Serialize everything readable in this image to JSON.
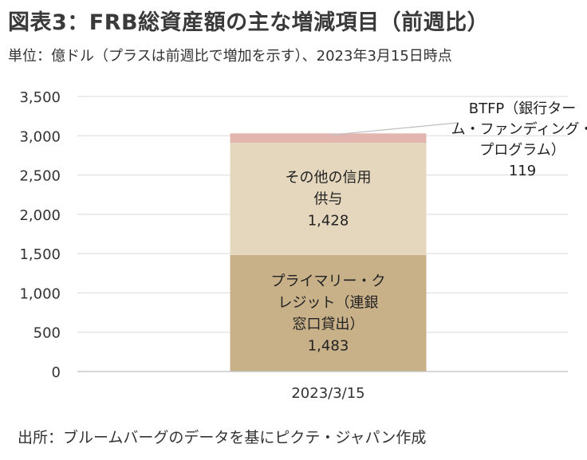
{
  "title": "図表3：FRB総資産額の主な増減項目（前週比）",
  "subtitle": "単位：億ドル（プラスは前週比で増加を示す）、2023年3月15日時点",
  "source": "出所：ブルームバーグのデータを基にピクテ・ジャパン作成",
  "colors": {
    "primary_credit": "#c8b089",
    "other_credit": "#e5d7bd",
    "btfp": "#e2b5ae",
    "grid": "#d9d9d9",
    "axis": "#bfbfbf"
  },
  "chart_data": {
    "type": "bar",
    "stacked": true,
    "categories": [
      "2023/3/15"
    ],
    "ylim": [
      0,
      3500
    ],
    "yticks": [
      "0",
      "500",
      "1,000",
      "1,500",
      "2,000",
      "2,500",
      "3,000",
      "3,500"
    ],
    "grid": true,
    "series": [
      {
        "name": "プライマリー・クレジット（連銀窓口貸出）",
        "values": [
          1483
        ],
        "label_lines": [
          "プライマリー・ク",
          "レジット（連銀",
          "窓口貸出）",
          "1,483"
        ]
      },
      {
        "name": "その他の信用供与",
        "values": [
          1428
        ],
        "label_lines": [
          "その他の信用",
          "供与",
          "1,428"
        ]
      },
      {
        "name": "BTFP（銀行ターム・ファンディング・プログラム）",
        "values": [
          119
        ],
        "label_lines": [
          "BTFP（銀行ター",
          "ム・ファンディング・",
          "プログラム）",
          "119"
        ]
      }
    ]
  }
}
